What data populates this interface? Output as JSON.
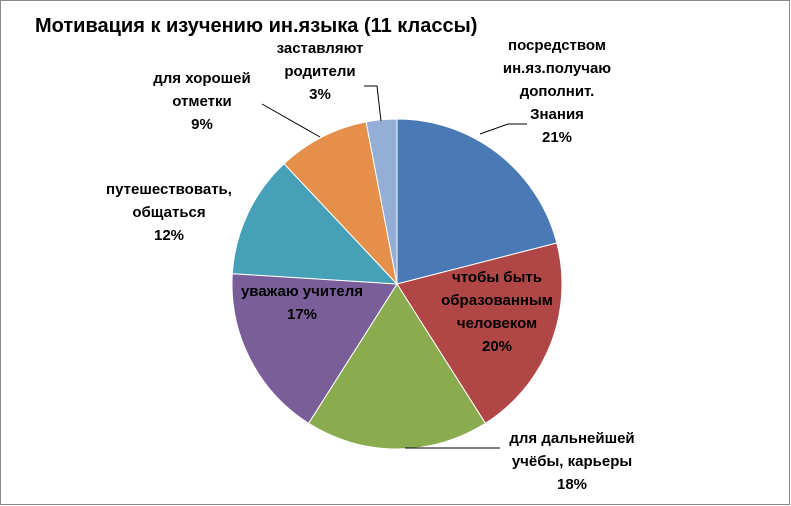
{
  "chart_data": {
    "type": "pie",
    "title": "Мотивация к изучению ин.языка (11 классы)",
    "categories": [
      "посредством\nин.яз.получаю\nдополнит.\nЗнания",
      "чтобы быть\nобразованным\nчеловеком",
      "для дальнейшей\nучёбы, карьеры",
      "уважаю учителя",
      "путешествовать,\nобщаться",
      "для хорошей\nотметки",
      "заставляют\nродители"
    ],
    "values": [
      21,
      20,
      18,
      17,
      12,
      9,
      3
    ],
    "value_labels": [
      "21%",
      "20%",
      "18%",
      "17%",
      "12%",
      "9%",
      "3%"
    ],
    "colors": [
      "#4a7ab5",
      "#b04645",
      "#8aac4f",
      "#7a5e9a",
      "#46a0b8",
      "#e5904a",
      "#94aed6"
    ]
  }
}
